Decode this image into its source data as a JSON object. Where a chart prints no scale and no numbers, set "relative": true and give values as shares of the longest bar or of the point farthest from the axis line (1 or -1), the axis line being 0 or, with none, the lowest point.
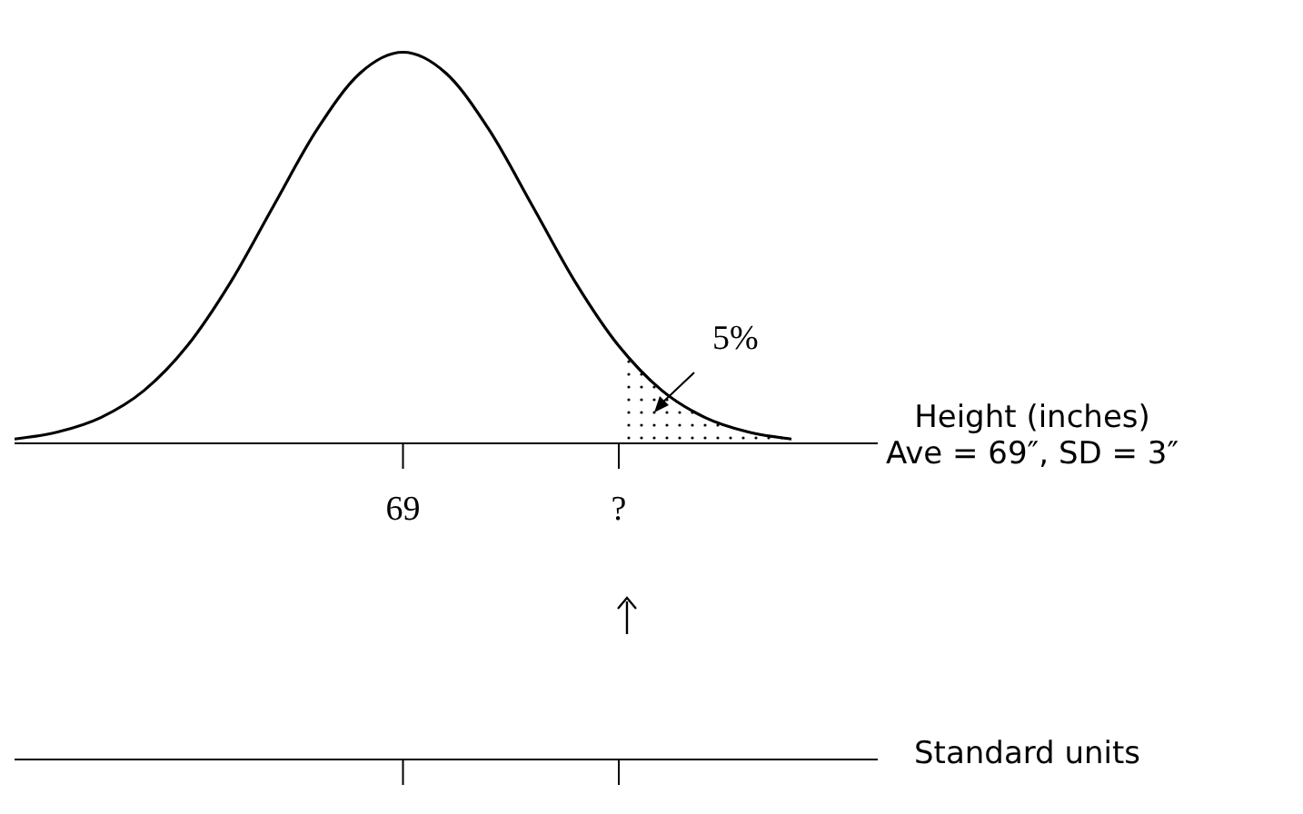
{
  "chart_data": {
    "type": "line",
    "relative": true,
    "xlabel": "Height (inches)",
    "x2label": "Standard units",
    "categories": [
      null,
      null,
      null,
      null,
      null,
      null,
      null,
      null,
      null,
      "69",
      null,
      null,
      null,
      null,
      "?",
      null,
      null,
      null,
      null,
      null,
      null
    ],
    "series": [
      {
        "color": "#000000",
        "values": [
          0.011,
          0.029,
          0.066,
          0.135,
          0.249,
          0.411,
          0.607,
          0.801,
          0.946,
          1,
          0.946,
          0.801,
          0.607,
          0.411,
          0.249,
          0.135,
          0.066,
          0.029,
          0.011,
          null,
          null
        ]
      },
      {
        "type": "area",
        "color": "#000000",
        "values": [
          null,
          null,
          null,
          null,
          null,
          null,
          null,
          null,
          null,
          null,
          null,
          null,
          null,
          null,
          0.249,
          0.135,
          0.066,
          0.029,
          0.011,
          null,
          null
        ]
      }
    ],
    "annotations": [
      "5%",
      "Ave = 69″, SD = 3″"
    ],
    "marker": "none",
    "line_style": "solid"
  }
}
